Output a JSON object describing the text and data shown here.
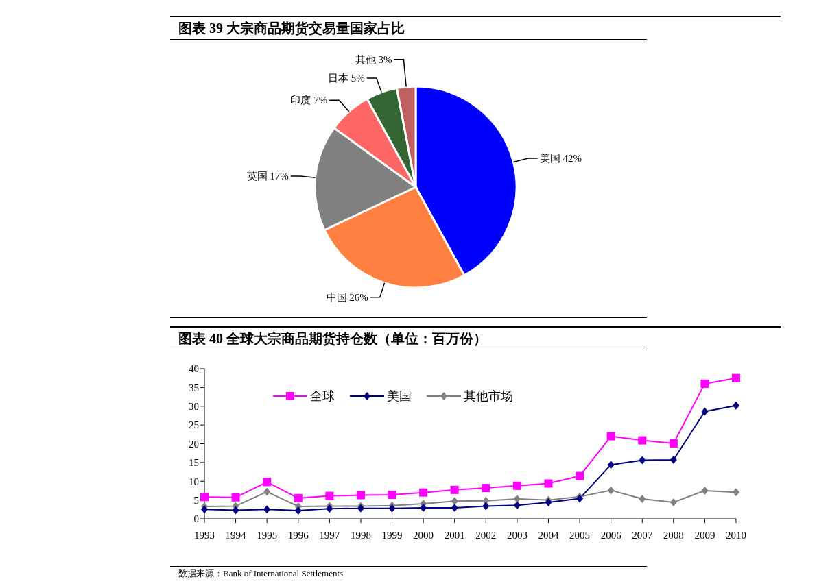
{
  "chart_data": [
    {
      "type": "pie",
      "title": "图表 39 大宗商品期货交易量国家占比",
      "categories": [
        "美国",
        "中国",
        "英国",
        "印度",
        "日本",
        "其他"
      ],
      "values": [
        42,
        26,
        17,
        7,
        5,
        3
      ],
      "value_labels": [
        "42%",
        "26%",
        "17%",
        "7%",
        "5%",
        "3%"
      ],
      "colors": [
        "#0000ff",
        "#ff8040",
        "#808080",
        "#ff6666",
        "#336633",
        "#c06060"
      ]
    },
    {
      "type": "line",
      "title": "图表 40 全球大宗商品期货持仓数（单位：百万份）",
      "categories": [
        "1993",
        "1994",
        "1995",
        "1996",
        "1997",
        "1998",
        "1999",
        "2000",
        "2001",
        "2002",
        "2003",
        "2004",
        "2005",
        "2006",
        "2007",
        "2008",
        "2009",
        "2010"
      ],
      "series": [
        {
          "name": "全球",
          "color": "#ff00ff",
          "marker": "square",
          "values": [
            5.8,
            5.7,
            9.8,
            5.5,
            6.1,
            6.3,
            6.4,
            7.0,
            7.7,
            8.2,
            8.8,
            9.4,
            11.4,
            22.0,
            20.9,
            20.1,
            36.0,
            37.5
          ]
        },
        {
          "name": "美国",
          "color": "#000080",
          "marker": "diamond",
          "values": [
            2.5,
            2.3,
            2.5,
            2.2,
            2.7,
            2.8,
            2.8,
            2.9,
            2.9,
            3.4,
            3.6,
            4.4,
            5.4,
            14.4,
            15.6,
            15.7,
            28.6,
            30.2
          ]
        },
        {
          "name": "其他市场",
          "color": "#808080",
          "marker": "diamond",
          "values": [
            3.3,
            3.4,
            7.2,
            3.3,
            3.4,
            3.4,
            3.5,
            4.0,
            4.7,
            4.8,
            5.3,
            5.0,
            5.9,
            7.6,
            5.3,
            4.4,
            7.5,
            7.1
          ]
        }
      ],
      "ylim": [
        0,
        40
      ],
      "yticks": [
        0,
        5,
        10,
        15,
        20,
        25,
        30,
        35,
        40
      ],
      "grid": false,
      "legend": "top left",
      "line_style": "solid",
      "annotations": [
        "数据来源：Bank of International Settlements"
      ]
    }
  ]
}
